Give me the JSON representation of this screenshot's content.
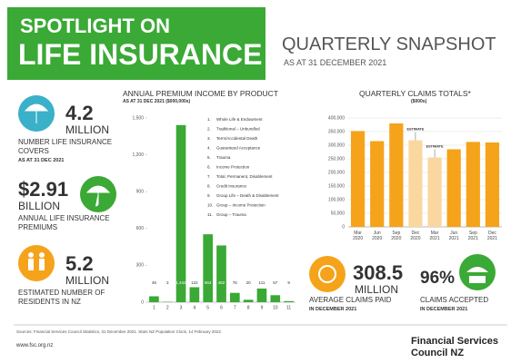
{
  "header": {
    "line1": "SPOTLIGHT ON",
    "line2": "LIFE INSURANCE",
    "title": "QUARTERLY SNAPSHOT",
    "subtitle": "AS AT 31 DECEMBER 2021"
  },
  "stats": [
    {
      "value": "4.2",
      "unit": "MILLION",
      "label": "NUMBER LIFE INSURANCE COVERS",
      "note": "AS AT 31 DEC 2021"
    },
    {
      "value": "$2.91",
      "unit": "BILLION",
      "label": "ANNUAL LIFE INSURANCE PREMIUMS"
    },
    {
      "value": "5.2",
      "unit": "MILLION",
      "label": "ESTIMATED NUMBER OF RESIDENTS IN NZ"
    },
    {
      "value": "308.5",
      "unit": "MILLION",
      "label": "AVERAGE CLAIMS PAID",
      "note": "IN DECEMBER 2021"
    },
    {
      "value": "96%",
      "label": "CLAIMS ACCEPTED",
      "note": "IN DECEMBER 2021"
    }
  ],
  "chart_data": [
    {
      "type": "bar",
      "title": "ANNUAL PREMIUM INCOME BY PRODUCT",
      "subtitle": "AS AT 31 DEC 2021 ($000,000s)",
      "categories": [
        "1",
        "2",
        "3",
        "4",
        "5",
        "6",
        "7",
        "8",
        "9",
        "10",
        "11"
      ],
      "values": [
        48,
        3,
        1442,
        122,
        553,
        462,
        76,
        20,
        111,
        57,
        9
      ],
      "value_labels": [
        "48",
        "3",
        "1,442",
        "122",
        "553",
        "462",
        "76",
        "20",
        "111",
        "57",
        "9"
      ],
      "color": "#3aa935",
      "ylim": [
        0,
        1500
      ],
      "yticks": [
        0,
        300,
        600,
        900,
        {
          "value": 1200,
          "label": "1,200"
        },
        {
          "value": 1500,
          "label": "1,500"
        }
      ],
      "legend": [
        {
          "num": "1.",
          "label": "Whole Life & Endowment"
        },
        {
          "num": "2.",
          "label": "Traditional – Unbundled"
        },
        {
          "num": "3.",
          "label": "Term/Accidental Death"
        },
        {
          "num": "4.",
          "label": "Guaranteed Acceptance"
        },
        {
          "num": "5.",
          "label": "Trauma"
        },
        {
          "num": "6.",
          "label": "Income Protection"
        },
        {
          "num": "7.",
          "label": "Total, Permanent, Disablement"
        },
        {
          "num": "8.",
          "label": "Credit Insurance"
        },
        {
          "num": "9.",
          "label": "Group Life – Death & Disablement"
        },
        {
          "num": "10.",
          "label": "Group – Income Protection"
        },
        {
          "num": "11.",
          "label": "Group – Trauma"
        }
      ]
    },
    {
      "type": "bar",
      "title": "QUARTERLY CLAIMS TOTALS*",
      "subtitle": "($000s)",
      "categories": [
        "Mar 2020",
        "Jun 2020",
        "Sep 2020",
        "Dec 2020",
        "Mar 2021",
        "Jun 2021",
        "Sep 2021",
        "Dec 2021"
      ],
      "values": [
        352000,
        315000,
        380000,
        318000,
        255000,
        285000,
        312000,
        310000
      ],
      "colors": [
        "#f5a31a",
        "#f5a31a",
        "#f5a31a",
        "#fbd7a0",
        "#fbd7a0",
        "#f5a31a",
        "#f5a31a",
        "#f5a31a"
      ],
      "ylim": [
        0,
        400000
      ],
      "grid": true,
      "yticks": [
        0,
        {
          "value": 50000,
          "label": "50,000"
        },
        {
          "value": 100000,
          "label": "100,000"
        },
        {
          "value": 150000,
          "label": "150,000"
        },
        {
          "value": 200000,
          "label": "200,000"
        },
        {
          "value": 250000,
          "label": "250,000"
        },
        {
          "value": 300000,
          "label": "300,000"
        },
        {
          "value": 350000,
          "label": "350,000"
        },
        {
          "value": 400000,
          "label": "400,000"
        }
      ],
      "annotations": [
        {
          "label": "ESTIMATE",
          "category": "Dec 2020"
        },
        {
          "label": "ESTIMATE",
          "category": "Mar 2021"
        }
      ]
    }
  ],
  "footer": {
    "sources": "Sources: Financial Services Council Statistics, 31 December 2021. Stats NZ Population Clock, 14 February 2022.",
    "url": "www.fsc.org.nz",
    "brand1": "Financial Services",
    "brand2": "Council NZ"
  }
}
